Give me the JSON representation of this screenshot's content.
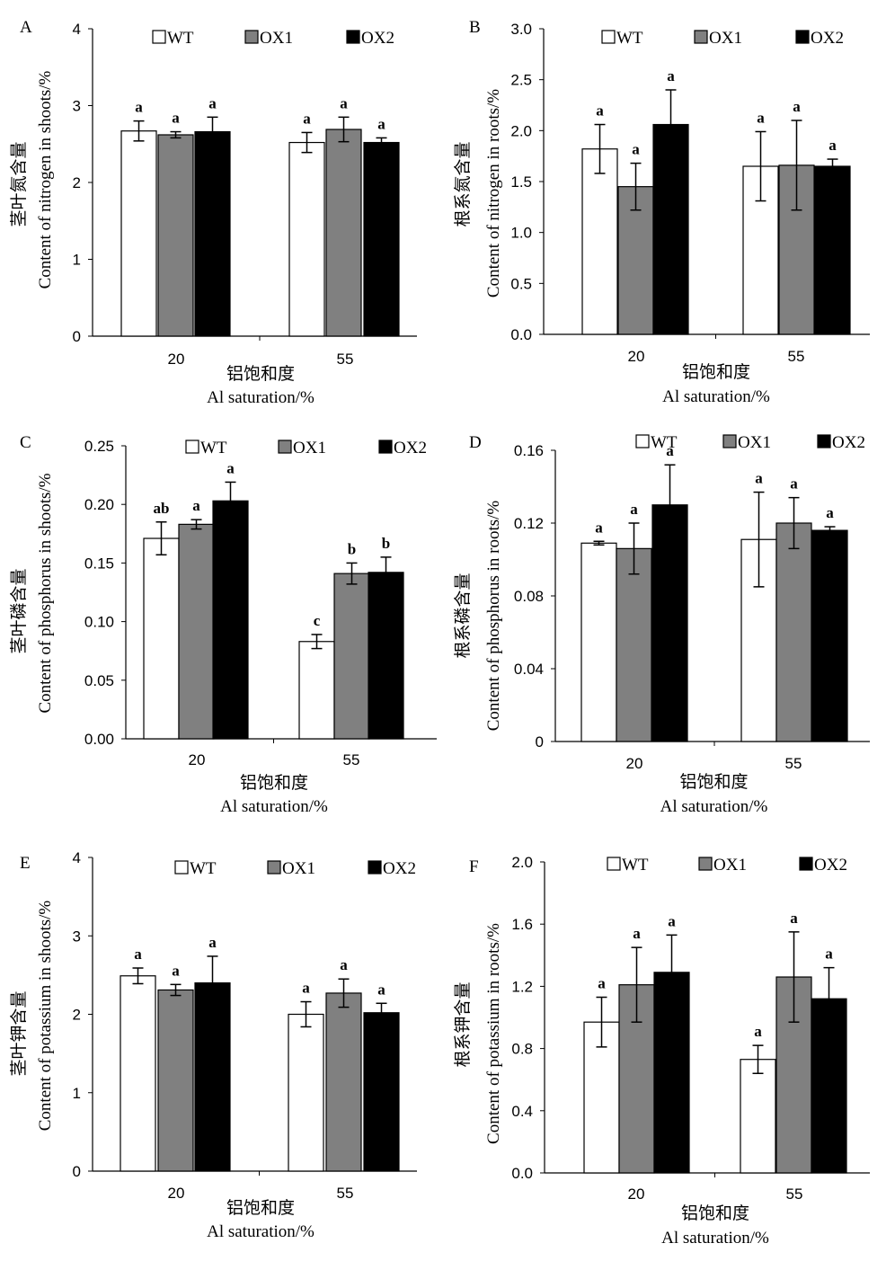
{
  "legend_labels": [
    "WT",
    "OX1",
    "OX2"
  ],
  "colors": {
    "WT": "#ffffff",
    "OX1": "#808080",
    "OX2": "#000000"
  },
  "chart_data": [
    {
      "panel": "A",
      "type": "bar",
      "categories": [
        "20",
        "55"
      ],
      "xlabel_cn": "铝饱和度",
      "xlabel_en": "Al saturation/%",
      "ylabel_cn": "茎叶氮含量",
      "ylabel_en": "Content of nitrogen in shoots/%",
      "ylim": [
        0,
        4
      ],
      "yticks": [
        "0",
        "1",
        "2",
        "3",
        "4"
      ],
      "series": [
        {
          "name": "WT",
          "values": [
            2.67,
            2.52
          ],
          "errors": [
            0.13,
            0.13
          ],
          "letters": [
            "a",
            "a"
          ]
        },
        {
          "name": "OX1",
          "values": [
            2.62,
            2.69
          ],
          "errors": [
            0.04,
            0.16
          ],
          "letters": [
            "a",
            "a"
          ]
        },
        {
          "name": "OX2",
          "values": [
            2.66,
            2.52
          ],
          "errors": [
            0.19,
            0.06
          ],
          "letters": [
            "a",
            "a"
          ]
        }
      ]
    },
    {
      "panel": "B",
      "type": "bar",
      "categories": [
        "20",
        "55"
      ],
      "xlabel_cn": "铝饱和度",
      "xlabel_en": "Al saturation/%",
      "ylabel_cn": "根系氮含量",
      "ylabel_en": "Content of nitrogen in roots/%",
      "ylim": [
        0,
        3
      ],
      "yticks": [
        "0.0",
        "0.5",
        "1.0",
        "1.5",
        "2.0",
        "2.5",
        "3.0"
      ],
      "series": [
        {
          "name": "WT",
          "values": [
            1.82,
            1.65
          ],
          "errors": [
            0.24,
            0.34
          ],
          "letters": [
            "a",
            "a"
          ]
        },
        {
          "name": "OX1",
          "values": [
            1.45,
            1.66
          ],
          "errors": [
            0.23,
            0.44
          ],
          "letters": [
            "a",
            "a"
          ]
        },
        {
          "name": "OX2",
          "values": [
            2.06,
            1.65
          ],
          "errors": [
            0.34,
            0.07
          ],
          "letters": [
            "a",
            "a"
          ]
        }
      ]
    },
    {
      "panel": "C",
      "type": "bar",
      "categories": [
        "20",
        "55"
      ],
      "xlabel_cn": "铝饱和度",
      "xlabel_en": "Al saturation/%",
      "ylabel_cn": "茎叶磷含量",
      "ylabel_en": "Content of phosphorus in shoots/%",
      "ylim": [
        0,
        0.25
      ],
      "yticks": [
        "0.00",
        "0.05",
        "0.10",
        "0.15",
        "0.20",
        "0.25"
      ],
      "series": [
        {
          "name": "WT",
          "values": [
            0.171,
            0.083
          ],
          "errors": [
            0.014,
            0.006
          ],
          "letters": [
            "ab",
            "c"
          ]
        },
        {
          "name": "OX1",
          "values": [
            0.183,
            0.141
          ],
          "errors": [
            0.004,
            0.009
          ],
          "letters": [
            "a",
            "b"
          ]
        },
        {
          "name": "OX2",
          "values": [
            0.203,
            0.142
          ],
          "errors": [
            0.016,
            0.013
          ],
          "letters": [
            "a",
            "b"
          ]
        }
      ]
    },
    {
      "panel": "D",
      "type": "bar",
      "categories": [
        "20",
        "55"
      ],
      "xlabel_cn": "铝饱和度",
      "xlabel_en": "Al saturation/%",
      "ylabel_cn": "根系磷含量",
      "ylabel_en": "Content of phosphorus in roots/%",
      "ylim": [
        0,
        0.16
      ],
      "yticks": [
        "0",
        "0.04",
        "0.08",
        "0.12",
        "0.16"
      ],
      "series": [
        {
          "name": "WT",
          "values": [
            0.109,
            0.111
          ],
          "errors": [
            0.001,
            0.026
          ],
          "letters": [
            "a",
            "a"
          ]
        },
        {
          "name": "OX1",
          "values": [
            0.106,
            0.12
          ],
          "errors": [
            0.014,
            0.014
          ],
          "letters": [
            "a",
            "a"
          ]
        },
        {
          "name": "OX2",
          "values": [
            0.13,
            0.116
          ],
          "errors": [
            0.022,
            0.002
          ],
          "letters": [
            "a",
            "a"
          ]
        }
      ]
    },
    {
      "panel": "E",
      "type": "bar",
      "categories": [
        "20",
        "55"
      ],
      "xlabel_cn": "铝饱和度",
      "xlabel_en": "Al saturation/%",
      "ylabel_cn": "茎叶钾含量",
      "ylabel_en": "Content of potassium in shoots/%",
      "ylim": [
        0,
        4
      ],
      "yticks": [
        "0",
        "1",
        "2",
        "3",
        "4"
      ],
      "series": [
        {
          "name": "WT",
          "values": [
            2.49,
            2.0
          ],
          "errors": [
            0.1,
            0.16
          ],
          "letters": [
            "a",
            "a"
          ]
        },
        {
          "name": "OX1",
          "values": [
            2.31,
            2.27
          ],
          "errors": [
            0.07,
            0.18
          ],
          "letters": [
            "a",
            "a"
          ]
        },
        {
          "name": "OX2",
          "values": [
            2.4,
            2.02
          ],
          "errors": [
            0.34,
            0.12
          ],
          "letters": [
            "a",
            "a"
          ]
        }
      ]
    },
    {
      "panel": "F",
      "type": "bar",
      "categories": [
        "20",
        "55"
      ],
      "xlabel_cn": "铝饱和度",
      "xlabel_en": "Al saturation/%",
      "ylabel_cn": "根系钾含量",
      "ylabel_en": "Content of potassium in roots/%",
      "ylim": [
        0,
        2
      ],
      "yticks": [
        "0.0",
        "0.4",
        "0.8",
        "1.2",
        "1.6",
        "2.0"
      ],
      "series": [
        {
          "name": "WT",
          "values": [
            0.97,
            0.73
          ],
          "errors": [
            0.16,
            0.09
          ],
          "letters": [
            "a",
            "a"
          ]
        },
        {
          "name": "OX1",
          "values": [
            1.21,
            1.26
          ],
          "errors": [
            0.24,
            0.29
          ],
          "letters": [
            "a",
            "a"
          ]
        },
        {
          "name": "OX2",
          "values": [
            1.29,
            1.12
          ],
          "errors": [
            0.24,
            0.2
          ],
          "letters": [
            "a",
            "a"
          ]
        }
      ]
    }
  ]
}
